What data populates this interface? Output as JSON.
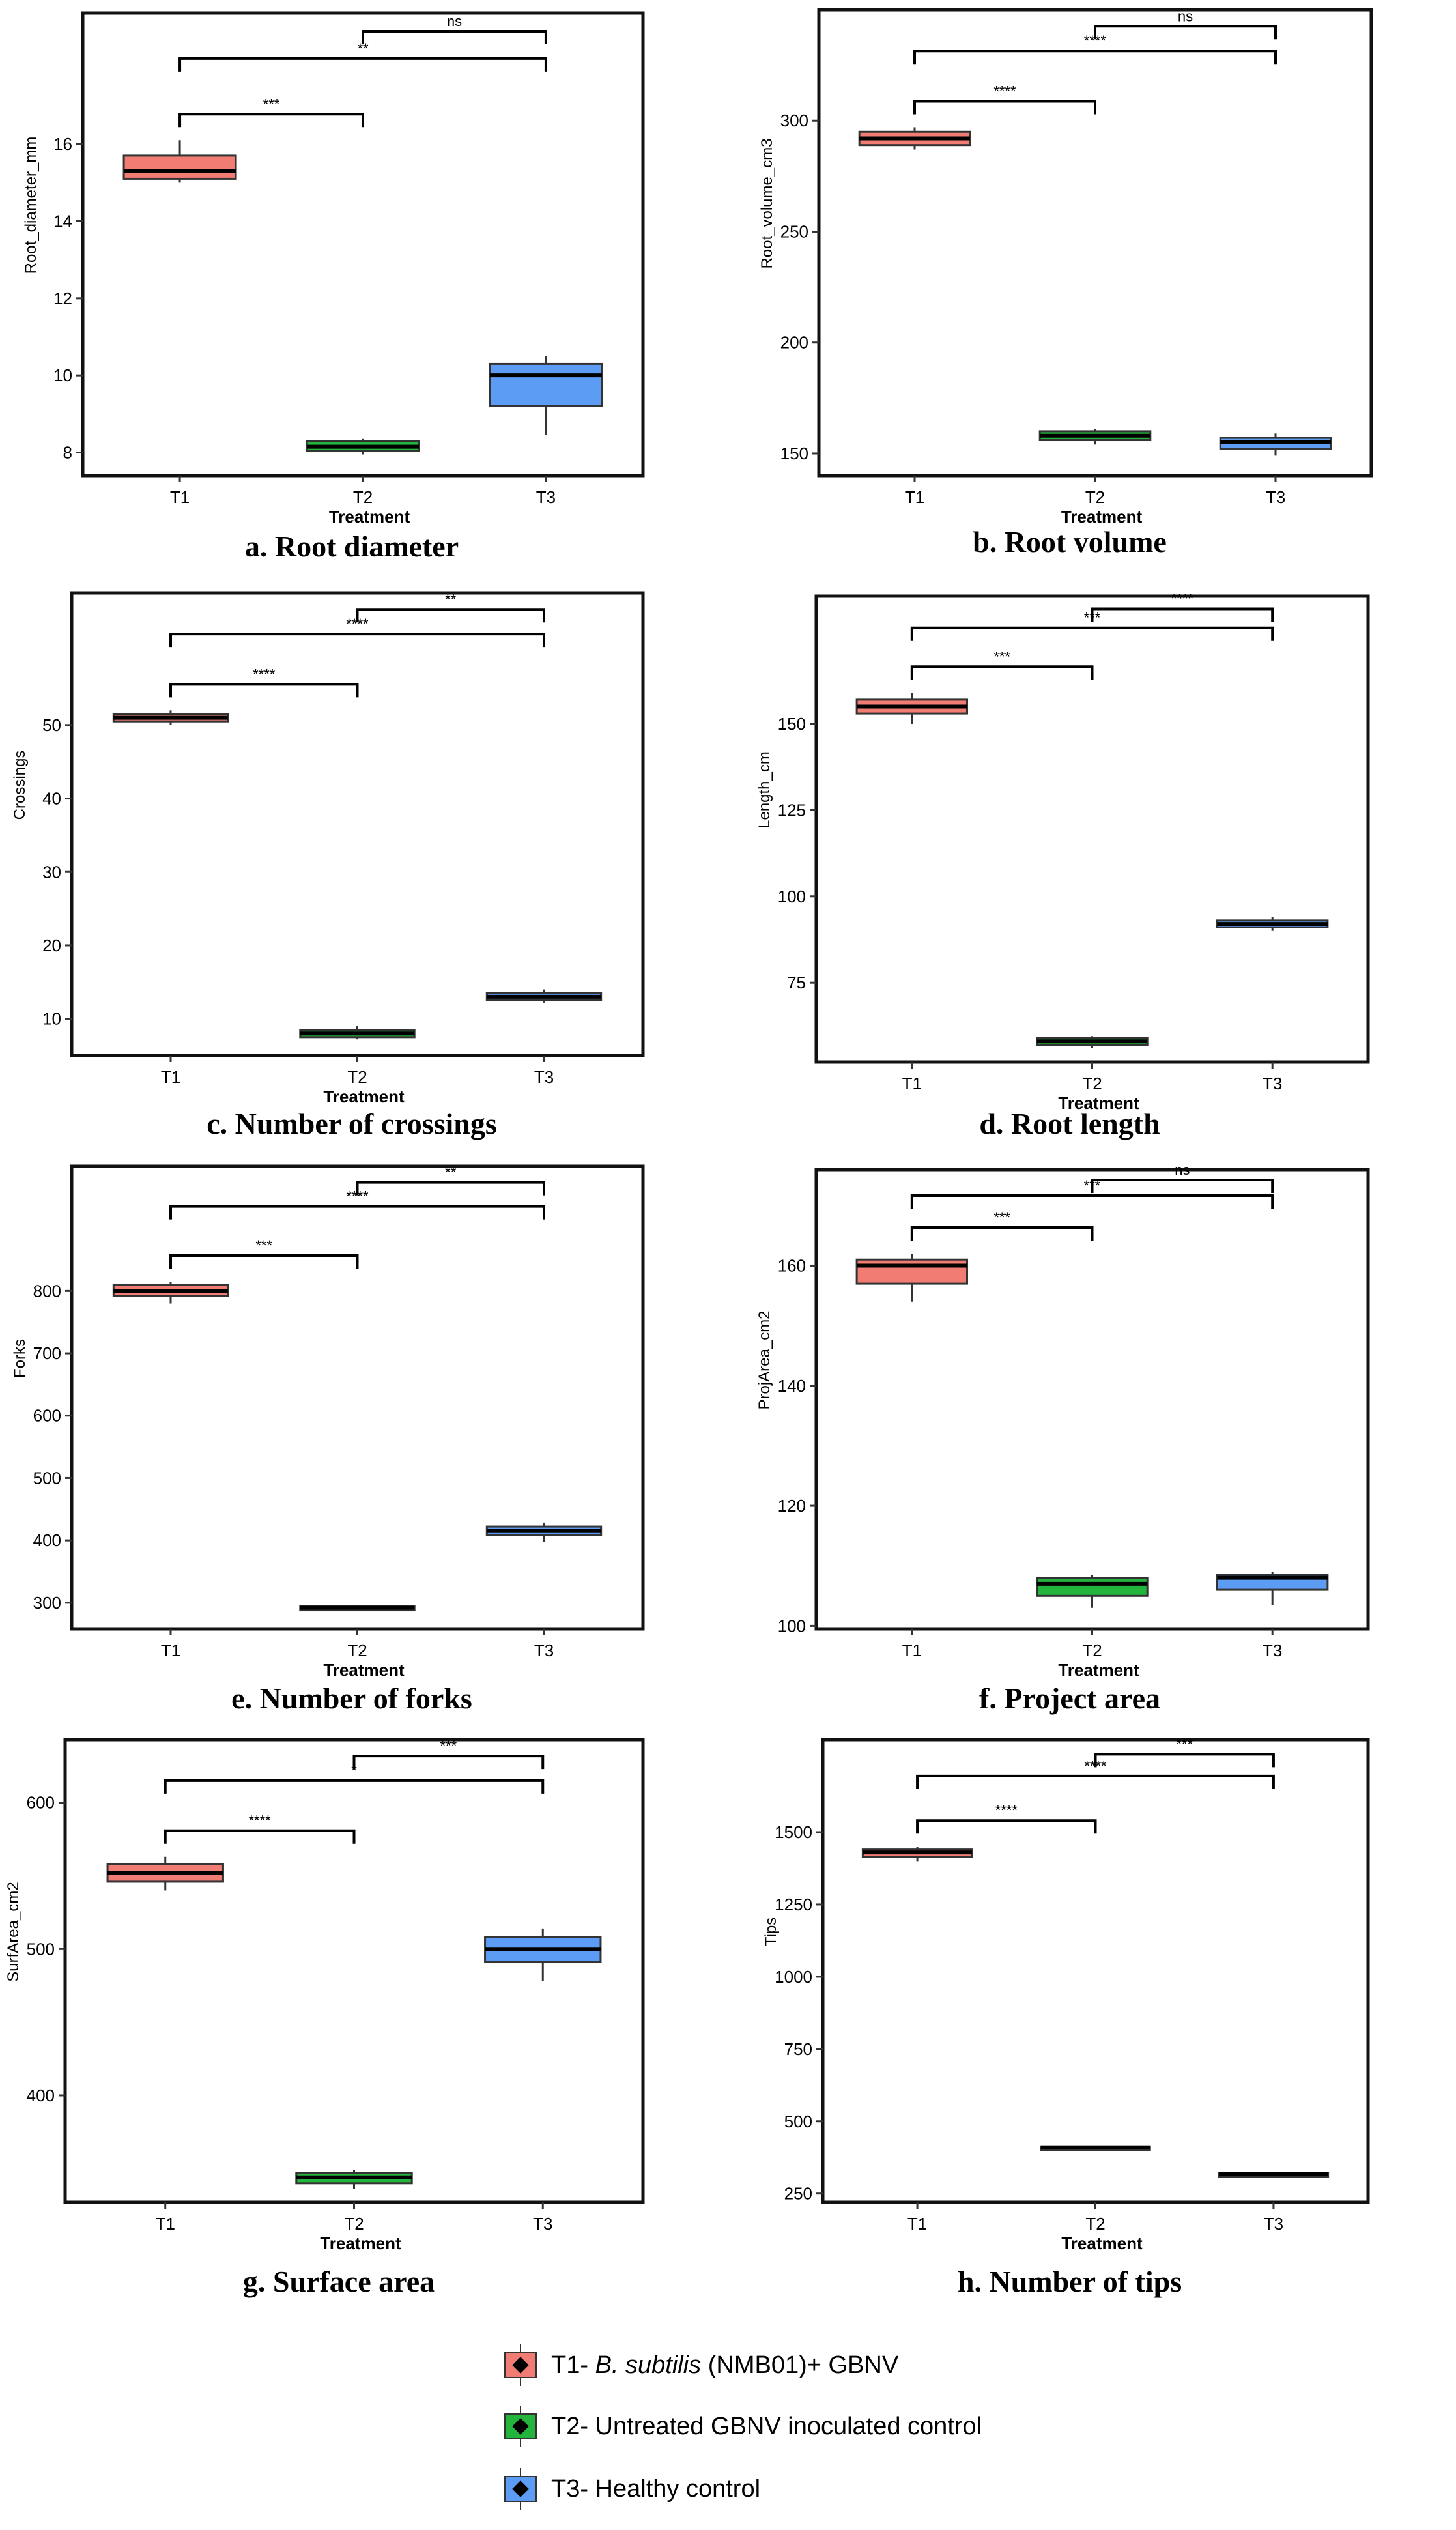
{
  "colors": {
    "T1": "#f07c74",
    "T2": "#22b43c",
    "T3": "#5c9cf5"
  },
  "captions": [
    "a. Root diameter",
    "b. Root volume",
    "c. Number of crossings",
    "d. Root length",
    "e. Number of forks",
    "f. Project area",
    "g. Surface area",
    "h. Number of tips"
  ],
  "legend": {
    "T1": {
      "prefix": "T1- ",
      "italic": "B. subtilis",
      "suffix": " (NMB01)+ GBNV"
    },
    "T2": {
      "label": "T2- Untreated GBNV inoculated control"
    },
    "T3": {
      "label": "T3- Healthy control"
    }
  },
  "chart_data": [
    {
      "id": "a",
      "type": "boxplot",
      "xlabel": "Treatment",
      "ylabel": "Root_diameter_mm",
      "categories": [
        "T1",
        "T2",
        "T3"
      ],
      "ylim": [
        7.4,
        19.4
      ],
      "yticks": [
        8,
        10,
        12,
        14,
        16
      ],
      "boxes": [
        {
          "min": 15.0,
          "q1": 15.1,
          "median": 15.3,
          "q3": 15.7,
          "max": 16.1
        },
        {
          "min": 7.95,
          "q1": 8.05,
          "median": 8.15,
          "q3": 8.3,
          "max": 8.35
        },
        {
          "min": 8.45,
          "q1": 9.2,
          "median": 10.0,
          "q3": 10.3,
          "max": 10.5
        }
      ],
      "brackets": [
        {
          "from": 0,
          "to": 1,
          "label": "***"
        },
        {
          "from": 0,
          "to": 2,
          "label": "**"
        },
        {
          "from": 1,
          "to": 2,
          "label": "ns"
        }
      ]
    },
    {
      "id": "b",
      "type": "boxplot",
      "xlabel": "Treatment",
      "ylabel": "Root_volume_cm3",
      "categories": [
        "T1",
        "T2",
        "T3"
      ],
      "ylim": [
        140,
        350
      ],
      "yticks": [
        150,
        200,
        250,
        300
      ],
      "boxes": [
        {
          "min": 287,
          "q1": 289,
          "median": 292,
          "q3": 295,
          "max": 297
        },
        {
          "min": 154,
          "q1": 156,
          "median": 158,
          "q3": 160,
          "max": 161
        },
        {
          "min": 149,
          "q1": 152,
          "median": 155,
          "q3": 157,
          "max": 159
        }
      ],
      "brackets": [
        {
          "from": 0,
          "to": 1,
          "label": "****"
        },
        {
          "from": 0,
          "to": 2,
          "label": "****"
        },
        {
          "from": 1,
          "to": 2,
          "label": "ns"
        }
      ]
    },
    {
      "id": "c",
      "type": "boxplot",
      "xlabel": "Treatment",
      "ylabel": "Crossings",
      "categories": [
        "T1",
        "T2",
        "T3"
      ],
      "ylim": [
        5,
        68
      ],
      "yticks": [
        10,
        20,
        30,
        40,
        50
      ],
      "boxes": [
        {
          "min": 50.0,
          "q1": 50.5,
          "median": 51.0,
          "q3": 51.5,
          "max": 52.0
        },
        {
          "min": 7.2,
          "q1": 7.5,
          "median": 8.0,
          "q3": 8.5,
          "max": 9.0
        },
        {
          "min": 12.2,
          "q1": 12.5,
          "median": 13.0,
          "q3": 13.5,
          "max": 14.0
        }
      ],
      "brackets": [
        {
          "from": 0,
          "to": 1,
          "label": "****"
        },
        {
          "from": 0,
          "to": 2,
          "label": "****"
        },
        {
          "from": 1,
          "to": 2,
          "label": "**"
        }
      ]
    },
    {
      "id": "d",
      "type": "boxplot",
      "xlabel": "Treatment",
      "ylabel": "Length_cm",
      "categories": [
        "T1",
        "T2",
        "T3"
      ],
      "ylim": [
        52,
        187
      ],
      "yticks": [
        75,
        100,
        125,
        150
      ],
      "boxes": [
        {
          "min": 150,
          "q1": 153,
          "median": 155,
          "q3": 157,
          "max": 159
        },
        {
          "min": 56,
          "q1": 57,
          "median": 58,
          "q3": 59,
          "max": 59.5
        },
        {
          "min": 90,
          "q1": 91,
          "median": 92,
          "q3": 93,
          "max": 94
        }
      ],
      "brackets": [
        {
          "from": 0,
          "to": 1,
          "label": "***"
        },
        {
          "from": 0,
          "to": 2,
          "label": "***"
        },
        {
          "from": 1,
          "to": 2,
          "label": "****"
        }
      ]
    },
    {
      "id": "e",
      "type": "boxplot",
      "xlabel": "Treatment",
      "ylabel": "Forks",
      "categories": [
        "T1",
        "T2",
        "T3"
      ],
      "ylim": [
        258,
        1000
      ],
      "yticks": [
        300,
        400,
        500,
        600,
        700,
        800
      ],
      "boxes": [
        {
          "min": 780,
          "q1": 792,
          "median": 800,
          "q3": 810,
          "max": 815
        },
        {
          "min": 288,
          "q1": 290,
          "median": 292,
          "q3": 294,
          "max": 296
        },
        {
          "min": 398,
          "q1": 408,
          "median": 415,
          "q3": 422,
          "max": 428
        }
      ],
      "brackets": [
        {
          "from": 0,
          "to": 1,
          "label": "***"
        },
        {
          "from": 0,
          "to": 2,
          "label": "****"
        },
        {
          "from": 1,
          "to": 2,
          "label": "**"
        }
      ]
    },
    {
      "id": "f",
      "type": "boxplot",
      "xlabel": "Treatment",
      "ylabel": "ProjArea_cm2",
      "categories": [
        "T1",
        "T2",
        "T3"
      ],
      "ylim": [
        99.5,
        176
      ],
      "yticks": [
        100,
        120,
        140,
        160
      ],
      "boxes": [
        {
          "min": 154,
          "q1": 157,
          "median": 160,
          "q3": 161,
          "max": 162
        },
        {
          "min": 103,
          "q1": 105,
          "median": 107,
          "q3": 108,
          "max": 108.5
        },
        {
          "min": 103.5,
          "q1": 106,
          "median": 108,
          "q3": 108.5,
          "max": 109
        }
      ],
      "brackets": [
        {
          "from": 0,
          "to": 1,
          "label": "***"
        },
        {
          "from": 0,
          "to": 2,
          "label": "***"
        },
        {
          "from": 1,
          "to": 2,
          "label": "ns"
        }
      ]
    },
    {
      "id": "g",
      "type": "boxplot",
      "xlabel": "Treatment",
      "ylabel": "SurfArea_cm2",
      "categories": [
        "T1",
        "T2",
        "T3"
      ],
      "ylim": [
        327,
        643
      ],
      "yticks": [
        400,
        500,
        600
      ],
      "boxes": [
        {
          "min": 540,
          "q1": 546,
          "median": 552,
          "q3": 558,
          "max": 563
        },
        {
          "min": 336,
          "q1": 340,
          "median": 344,
          "q3": 347,
          "max": 349
        },
        {
          "min": 478,
          "q1": 491,
          "median": 500,
          "q3": 508,
          "max": 514
        }
      ],
      "brackets": [
        {
          "from": 0,
          "to": 1,
          "label": "****"
        },
        {
          "from": 0,
          "to": 2,
          "label": "*"
        },
        {
          "from": 1,
          "to": 2,
          "label": "***"
        }
      ]
    },
    {
      "id": "h",
      "type": "boxplot",
      "xlabel": "Treatment",
      "ylabel": "Tips",
      "categories": [
        "T1",
        "T2",
        "T3"
      ],
      "ylim": [
        220,
        1820
      ],
      "yticks": [
        250,
        500,
        750,
        1000,
        1250,
        1500
      ],
      "boxes": [
        {
          "min": 1400,
          "q1": 1415,
          "median": 1430,
          "q3": 1440,
          "max": 1450
        },
        {
          "min": 405,
          "q1": 408,
          "median": 410,
          "q3": 413,
          "max": 415
        },
        {
          "min": 312,
          "q1": 315,
          "median": 318,
          "q3": 321,
          "max": 324
        }
      ],
      "brackets": [
        {
          "from": 0,
          "to": 1,
          "label": "****"
        },
        {
          "from": 0,
          "to": 2,
          "label": "****"
        },
        {
          "from": 1,
          "to": 2,
          "label": "***"
        }
      ]
    }
  ]
}
